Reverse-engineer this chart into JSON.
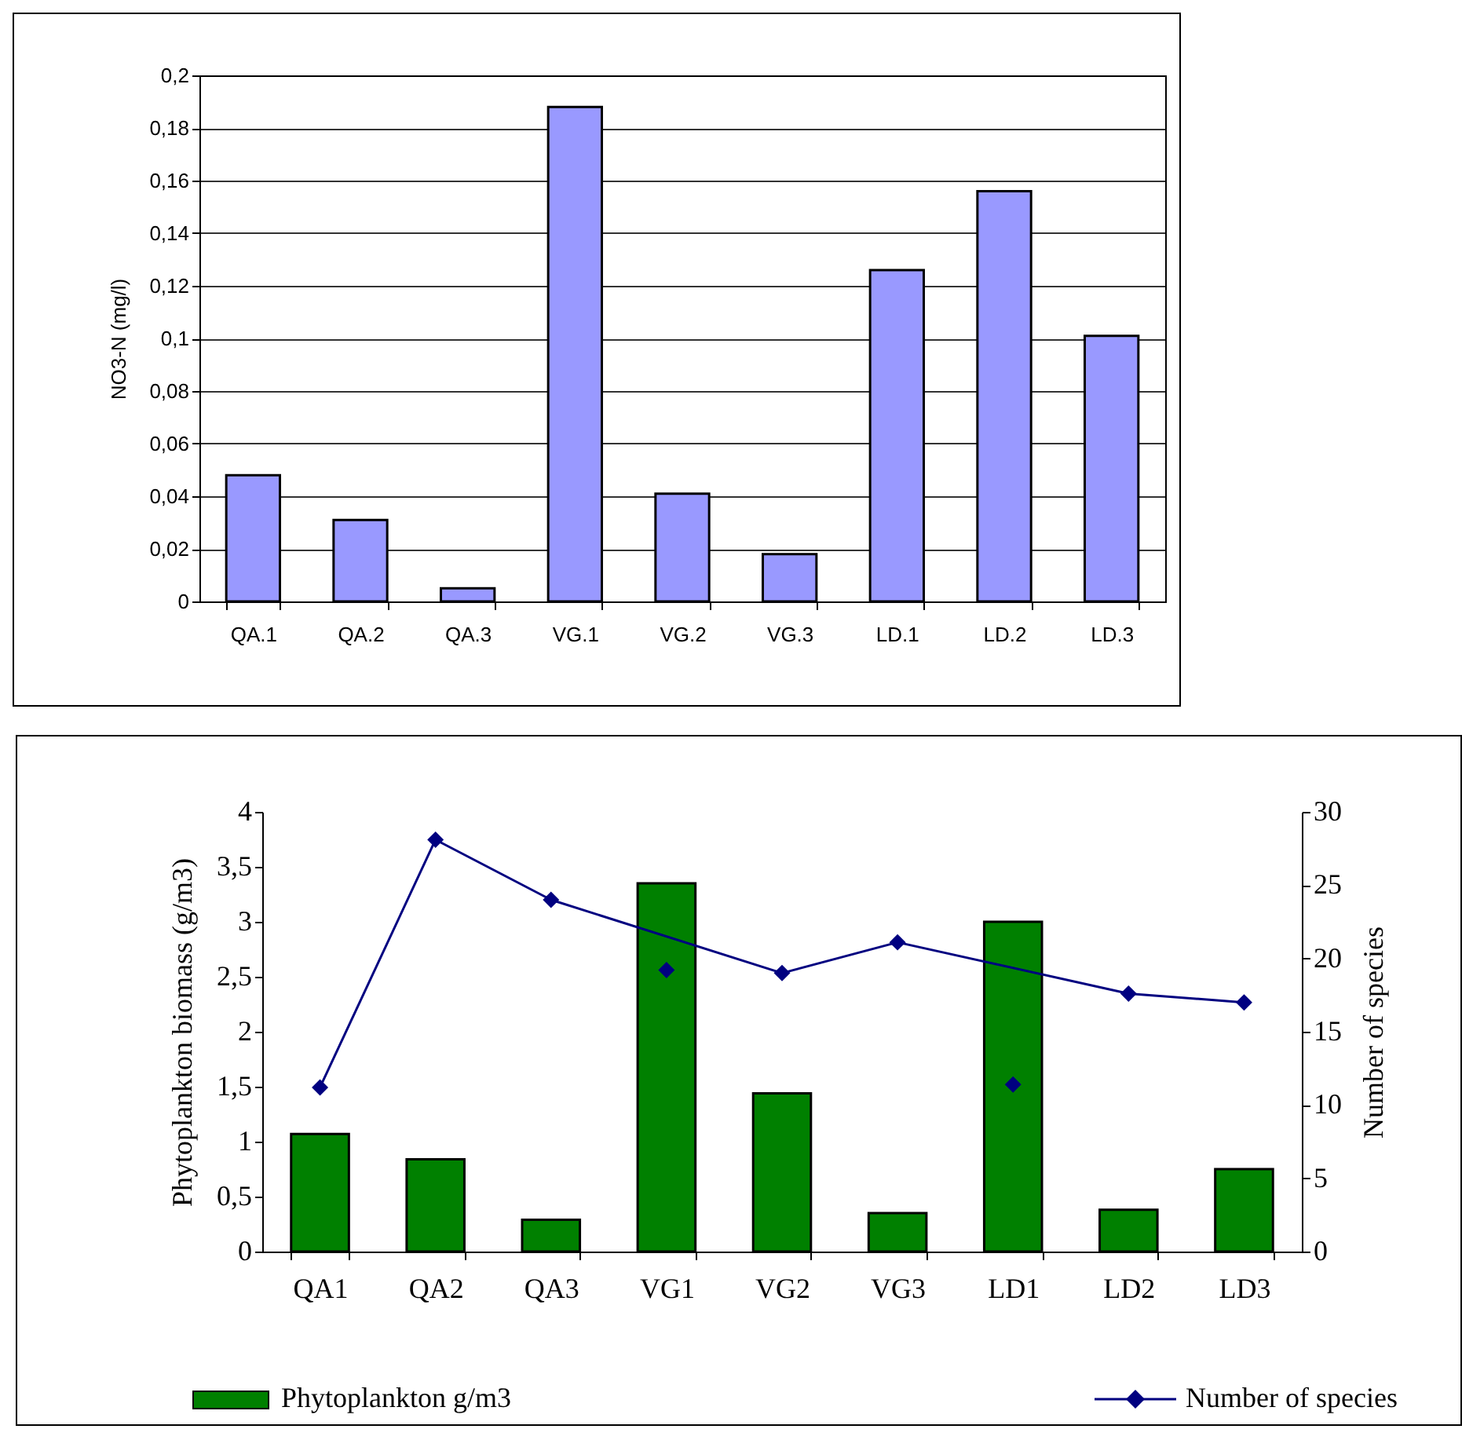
{
  "chart_data": [
    {
      "type": "bar",
      "ylabel": "NO3-N (mg/l)",
      "categories": [
        "QA.1",
        "QA.2",
        "QA.3",
        "VG.1",
        "VG.2",
        "VG.3",
        "LD.1",
        "LD.2",
        "LD.3"
      ],
      "series": [
        {
          "color": "#9999ff",
          "values": [
            0.048,
            0.031,
            0.005,
            0.188,
            0.041,
            0.018,
            0.126,
            0.156,
            0.101
          ]
        }
      ],
      "ylim": [
        0,
        0.2
      ],
      "yticks": [
        {
          "value": 0,
          "label": "0"
        },
        {
          "value": 0.02,
          "label": "0,02"
        },
        {
          "value": 0.04,
          "label": "0,04"
        },
        {
          "value": 0.06,
          "label": "0,06"
        },
        {
          "value": 0.08,
          "label": "0,08"
        },
        {
          "value": 0.1,
          "label": "0,1"
        },
        {
          "value": 0.12,
          "label": "0,12"
        },
        {
          "value": 0.14,
          "label": "0,14"
        },
        {
          "value": 0.16,
          "label": "0,16"
        },
        {
          "value": 0.18,
          "label": "0,18"
        },
        {
          "value": 0.2,
          "label": "0,2"
        }
      ],
      "grid": "y",
      "legend": false
    },
    {
      "type": "bar",
      "ylabel": "Phytoplankton biomass (g/m3)",
      "y2label": "Number of species",
      "categories": [
        "QA1",
        "QA2",
        "QA3",
        "VG1",
        "VG2",
        "VG3",
        "LD1",
        "LD2",
        "LD3"
      ],
      "series": [
        {
          "name": "Phytoplankton g/m3",
          "color": "#008000",
          "values": [
            1.07,
            0.84,
            0.29,
            3.35,
            1.44,
            0.35,
            3.0,
            0.38,
            0.75
          ]
        },
        {
          "name": "Number of species",
          "type": "line",
          "axis": "y2",
          "color": "#000080",
          "marker": "diamond",
          "values": [
            11.2,
            28.1,
            24.0,
            null,
            19.0,
            21.1,
            null,
            17.6,
            17.0
          ]
        },
        {
          "type": "scatter",
          "axis": "y2",
          "color": "#000080",
          "marker": "diamond",
          "values": [
            null,
            null,
            null,
            19.2,
            null,
            null,
            11.4,
            null,
            null
          ]
        }
      ],
      "ylim": [
        0,
        4
      ],
      "yticks": [
        {
          "value": 0,
          "label": "0"
        },
        {
          "value": 0.5,
          "label": "0,5"
        },
        {
          "value": 1,
          "label": "1"
        },
        {
          "value": 1.5,
          "label": "1,5"
        },
        {
          "value": 2,
          "label": "2"
        },
        {
          "value": 2.5,
          "label": "2,5"
        },
        {
          "value": 3,
          "label": "3"
        },
        {
          "value": 3.5,
          "label": "3,5"
        },
        {
          "value": 4,
          "label": "4"
        }
      ],
      "y2lim": [
        0,
        30
      ],
      "y2ticks": [
        0,
        5,
        10,
        15,
        20,
        25,
        30
      ],
      "grid": false,
      "legend": "bottom"
    }
  ]
}
